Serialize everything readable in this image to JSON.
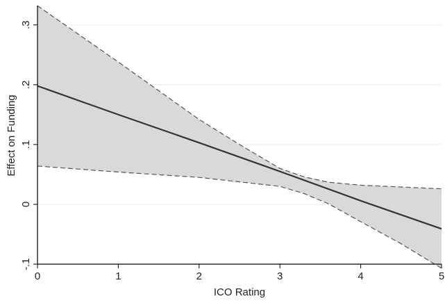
{
  "chart_data": {
    "type": "line",
    "xlabel": "ICO Rating",
    "ylabel": "Effect on Funding",
    "xlim": [
      0,
      5
    ],
    "ylim": [
      -0.1,
      0.33
    ],
    "grid": true,
    "legend": "none",
    "x_ticks": [
      0,
      1,
      2,
      3,
      4,
      5
    ],
    "x_tick_labels": [
      "0",
      "1",
      "2",
      "3",
      "4",
      "5"
    ],
    "y_ticks": [
      -0.1,
      0,
      0.1,
      0.2,
      0.3
    ],
    "y_tick_labels": [
      "-.1",
      "0",
      ".1",
      ".2",
      ".3"
    ],
    "series": [
      {
        "role": "estimate",
        "style": "solid",
        "color": "#333333",
        "x": [
          0,
          1,
          2,
          3,
          4,
          5
        ],
        "y": [
          0.198,
          0.15,
          0.103,
          0.055,
          0.006,
          -0.041
        ]
      },
      {
        "role": "upper_ci",
        "style": "dashed",
        "color": "#555555",
        "x": [
          0,
          1,
          2,
          2.5,
          3,
          3.3,
          3.6,
          4,
          4.5,
          5
        ],
        "y": [
          0.332,
          0.238,
          0.142,
          0.1,
          0.06,
          0.046,
          0.037,
          0.032,
          0.029,
          0.026
        ]
      },
      {
        "role": "lower_ci",
        "style": "dashed",
        "color": "#555555",
        "x": [
          0,
          0.5,
          1,
          2,
          3,
          3.3,
          3.6,
          4,
          4.5,
          5
        ],
        "y": [
          0.064,
          0.059,
          0.054,
          0.045,
          0.03,
          0.018,
          0.001,
          -0.029,
          -0.066,
          -0.107
        ]
      }
    ],
    "band_fill": "#d9d9d9"
  }
}
